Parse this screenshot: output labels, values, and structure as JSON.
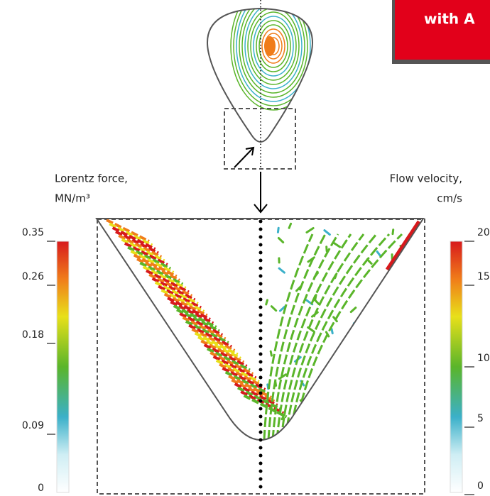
{
  "banner": {
    "text": "with A"
  },
  "lorentz": {
    "label_line1": "Lorentz force,",
    "label_line2": "MN/m³",
    "ticks": [
      0.35,
      0.26,
      0.18,
      0.09,
      0
    ]
  },
  "velocity": {
    "label_line1": "Flow velocity,",
    "label_line2": "cm/s",
    "ticks": [
      20,
      15,
      10,
      5,
      0
    ]
  }
}
